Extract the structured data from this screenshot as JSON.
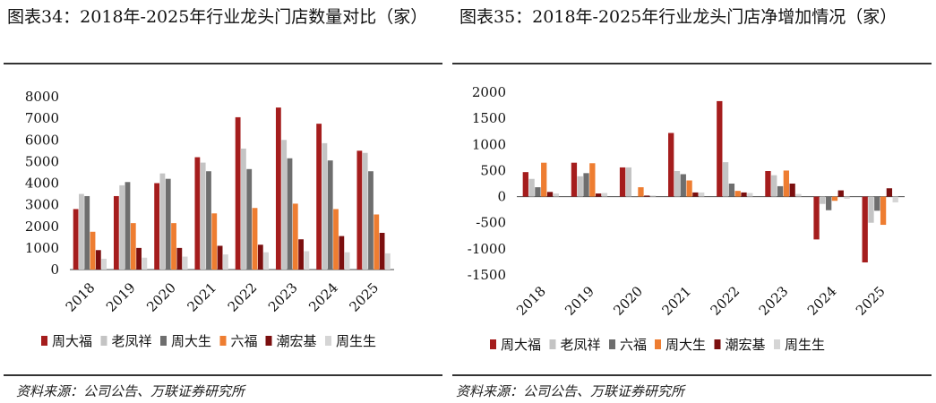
{
  "colors": {
    "周大福": "#a51d1d",
    "老凤祥": "#c4c4c4",
    "周大生_grey": "#6e6e6e",
    "六福_orange": "#ee7d31",
    "潮宏基": "#7b0f0f",
    "周生生": "#d5d5d5"
  },
  "left": {
    "title": "图表34：2018年-2025年行业龙头门店数量对比（家）",
    "source": "资料来源：公司公告、万联证券研究所",
    "chart_data": {
      "type": "bar",
      "categories": [
        "2018",
        "2019",
        "2020",
        "2021",
        "2022",
        "2023",
        "2024",
        "2025"
      ],
      "ylim": [
        0,
        8000
      ],
      "yticks": [
        0,
        1000,
        2000,
        3000,
        4000,
        5000,
        6000,
        7000,
        8000
      ],
      "legend_position": "bottom",
      "series": [
        {
          "name": "周大福",
          "color": "#a51d1d",
          "values": [
            2800,
            3400,
            4000,
            5200,
            7050,
            7500,
            6750,
            5500
          ]
        },
        {
          "name": "老凤祥",
          "color": "#c4c4c4",
          "values": [
            3500,
            3900,
            4450,
            4950,
            5600,
            6000,
            5850,
            5400
          ]
        },
        {
          "name": "周大生",
          "color": "#6e6e6e",
          "values": [
            3400,
            4050,
            4200,
            4550,
            4650,
            5150,
            5050,
            4550
          ]
        },
        {
          "name": "六福",
          "color": "#ee7d31",
          "values": [
            1750,
            2150,
            2150,
            2600,
            2850,
            3050,
            2800,
            2550
          ]
        },
        {
          "name": "潮宏基",
          "color": "#7b0f0f",
          "values": [
            900,
            1000,
            1000,
            1100,
            1150,
            1400,
            1550,
            1700
          ]
        },
        {
          "name": "周生生",
          "color": "#d5d5d5",
          "values": [
            500,
            550,
            600,
            700,
            800,
            850,
            800,
            750
          ]
        }
      ]
    }
  },
  "right": {
    "title": "图表35：2018年-2025年行业龙头门店净增加情况（家）",
    "source": "资料来源：公司公告、万联证券研究所",
    "chart_data": {
      "type": "bar",
      "categories": [
        "2018",
        "2019",
        "2020",
        "2021",
        "2022",
        "2023",
        "2024",
        "2025"
      ],
      "ylim": [
        -1500,
        2000
      ],
      "yticks": [
        -1500,
        -1000,
        -500,
        0,
        500,
        1000,
        1500,
        2000
      ],
      "legend_position": "bottom",
      "series": [
        {
          "name": "周大福",
          "color": "#a51d1d",
          "values": [
            470,
            650,
            560,
            1220,
            1830,
            490,
            -820,
            -1260
          ]
        },
        {
          "name": "老凤祥",
          "color": "#c4c4c4",
          "values": [
            340,
            390,
            560,
            490,
            660,
            410,
            -140,
            -500
          ]
        },
        {
          "name": "六福",
          "color": "#6e6e6e",
          "values": [
            180,
            450,
            0,
            430,
            250,
            200,
            -260,
            -270
          ]
        },
        {
          "name": "周大生",
          "color": "#ee7d31",
          "values": [
            650,
            640,
            180,
            310,
            110,
            500,
            -80,
            -540
          ]
        },
        {
          "name": "潮宏基",
          "color": "#7b0f0f",
          "values": [
            90,
            60,
            20,
            80,
            80,
            250,
            120,
            160
          ]
        },
        {
          "name": "周生生",
          "color": "#d5d5d5",
          "values": [
            60,
            70,
            20,
            80,
            70,
            50,
            -40,
            -110
          ]
        }
      ]
    }
  }
}
